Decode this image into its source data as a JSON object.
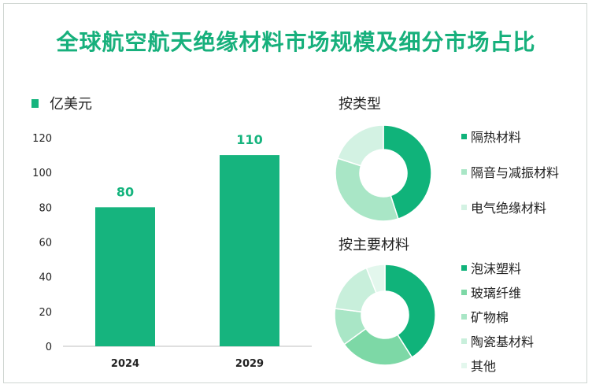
{
  "title": "全球航空航天绝缘材料市场规模及细分市场占比",
  "chart_data": [
    {
      "type": "bar",
      "title": "",
      "legend": "亿美元",
      "categories": [
        "2024",
        "2029"
      ],
      "values": [
        80,
        110
      ],
      "data_labels": [
        "80",
        "110"
      ],
      "yticks": [
        "0",
        "20",
        "40",
        "60",
        "80",
        "100",
        "120"
      ],
      "ylim": [
        0,
        120
      ],
      "color": "#16b47e",
      "label_color": "#16b47e",
      "grid": false
    },
    {
      "type": "pie",
      "title": "按类型",
      "labels": [
        "隔热材料",
        "隔音与减振材料",
        "电气绝缘材料"
      ],
      "values": [
        45,
        35,
        20
      ],
      "colors": [
        "#10b37a",
        "#a9e6c6",
        "#d3f2e3"
      ]
    },
    {
      "type": "pie",
      "title": "按主要材料",
      "labels": [
        "泡沫塑料",
        "玻璃纤维",
        "矿物棉",
        "陶瓷基材料",
        "其他"
      ],
      "values": [
        41,
        24,
        12,
        17,
        6
      ],
      "colors": [
        "#10b37a",
        "#7dd8a6",
        "#a9e6c6",
        "#c8efdb",
        "#e3f7ed"
      ]
    }
  ]
}
